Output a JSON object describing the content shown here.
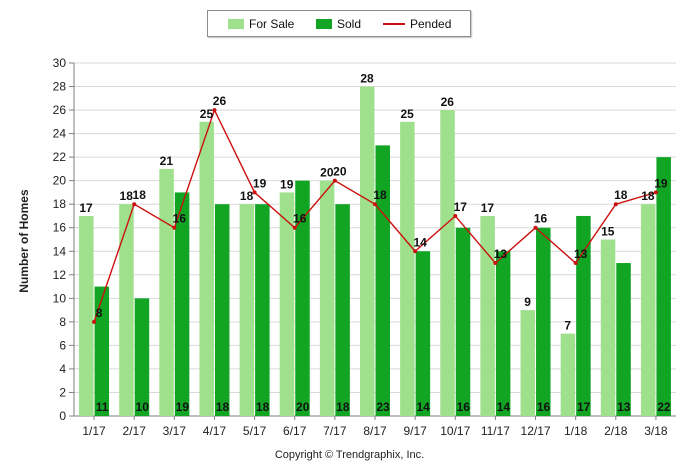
{
  "legend": {
    "for_sale": "For Sale",
    "sold": "Sold",
    "pended": "Pended"
  },
  "colors": {
    "for_sale": "#9fe08c",
    "sold": "#12a524",
    "pended": "#cc1010",
    "grid": "#d9d9d9",
    "axis": "#7f7f7f"
  },
  "copyright": "Copyright © Trendgraphix, Inc.",
  "chart_data": {
    "type": "bar",
    "title": "",
    "xlabel": "",
    "ylabel": "Number of Homes",
    "ylim": [
      0,
      30
    ],
    "yticks": [
      0,
      2,
      4,
      6,
      8,
      10,
      12,
      14,
      16,
      18,
      20,
      22,
      24,
      26,
      28,
      30
    ],
    "grid": true,
    "legend_position": "top-center",
    "categories": [
      "1/17",
      "2/17",
      "3/17",
      "4/17",
      "5/17",
      "6/17",
      "7/17",
      "8/17",
      "9/17",
      "10/17",
      "11/17",
      "12/17",
      "1/18",
      "2/18",
      "3/18"
    ],
    "series": [
      {
        "name": "For Sale",
        "kind": "bar",
        "values": [
          17,
          18,
          21,
          25,
          18,
          19,
          20,
          28,
          25,
          26,
          17,
          9,
          7,
          15,
          18
        ]
      },
      {
        "name": "Sold",
        "kind": "bar",
        "values": [
          11,
          10,
          19,
          18,
          18,
          20,
          18,
          23,
          14,
          16,
          14,
          16,
          17,
          13,
          22
        ]
      },
      {
        "name": "Pended",
        "kind": "line",
        "values": [
          8,
          18,
          16,
          26,
          19,
          16,
          20,
          18,
          14,
          17,
          13,
          16,
          13,
          18,
          19
        ]
      }
    ]
  }
}
